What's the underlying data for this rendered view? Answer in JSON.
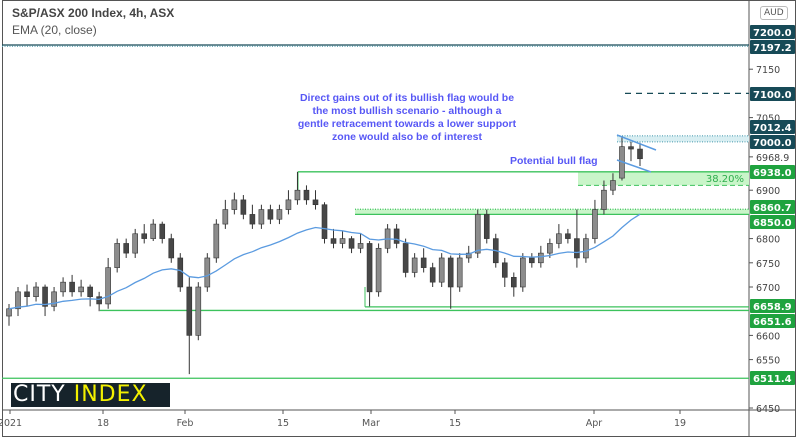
{
  "header": {
    "title": "S&P/ASX 200 Index, 4h, ASX",
    "subtitle": "EMA (20, close)",
    "currency": "AUD"
  },
  "logo": {
    "part1": "CITY",
    "part2": "INDEX"
  },
  "annotations": {
    "main": "Direct gains out of its bullish flag would be the most bullish scenario - although a gentle retracement towards a lower support zone would also be of interest",
    "flag": "Potential bull flag",
    "fib": "38.20%"
  },
  "colors": {
    "up": "#8c8c8c",
    "down": "#474747",
    "ema": "#5b9be0",
    "support": "#3cc25c",
    "zone": "#c9f5c9",
    "resistance": "#174a57",
    "label_green": "#1fa33f",
    "label_dark": "#174a57",
    "annotation": "#5757f5"
  },
  "chart_data": {
    "type": "candlestick",
    "title": "S&P/ASX 200 Index, 4h, ASX",
    "ylim": [
      6430,
      7230
    ],
    "ema_period": 20,
    "x_tick_labels": [
      "2021",
      "18",
      "Feb",
      "15",
      "Mar",
      "15",
      "Apr",
      "19"
    ],
    "y_tick_labels": [
      "7150",
      "7050",
      "6968.9",
      "6900",
      "6800",
      "6750",
      "6700",
      "6600",
      "6550",
      "6450"
    ],
    "candles": [
      [
        6640,
        6665,
        6620,
        6655
      ],
      [
        6655,
        6700,
        6640,
        6690
      ],
      [
        6690,
        6705,
        6660,
        6680
      ],
      [
        6680,
        6710,
        6670,
        6700
      ],
      [
        6700,
        6705,
        6640,
        6660
      ],
      [
        6660,
        6700,
        6650,
        6690
      ],
      [
        6690,
        6720,
        6680,
        6710
      ],
      [
        6710,
        6725,
        6680,
        6690
      ],
      [
        6690,
        6715,
        6680,
        6700
      ],
      [
        6700,
        6705,
        6660,
        6680
      ],
      [
        6680,
        6690,
        6650,
        6665
      ],
      [
        6665,
        6760,
        6655,
        6740
      ],
      [
        6740,
        6800,
        6730,
        6790
      ],
      [
        6790,
        6800,
        6760,
        6770
      ],
      [
        6770,
        6820,
        6760,
        6810
      ],
      [
        6810,
        6830,
        6790,
        6800
      ],
      [
        6800,
        6840,
        6795,
        6830
      ],
      [
        6830,
        6835,
        6790,
        6800
      ],
      [
        6800,
        6810,
        6750,
        6760
      ],
      [
        6760,
        6770,
        6690,
        6700
      ],
      [
        6700,
        6720,
        6520,
        6600
      ],
      [
        6600,
        6710,
        6590,
        6700
      ],
      [
        6700,
        6770,
        6690,
        6760
      ],
      [
        6760,
        6840,
        6750,
        6830
      ],
      [
        6830,
        6880,
        6820,
        6860
      ],
      [
        6860,
        6895,
        6850,
        6880
      ],
      [
        6880,
        6890,
        6840,
        6850
      ],
      [
        6850,
        6870,
        6820,
        6830
      ],
      [
        6830,
        6870,
        6820,
        6860
      ],
      [
        6860,
        6870,
        6830,
        6840
      ],
      [
        6840,
        6870,
        6830,
        6860
      ],
      [
        6860,
        6900,
        6850,
        6880
      ],
      [
        6880,
        6938,
        6870,
        6900
      ],
      [
        6900,
        6910,
        6870,
        6880
      ],
      [
        6880,
        6900,
        6860,
        6870
      ],
      [
        6870,
        6875,
        6790,
        6800
      ],
      [
        6800,
        6820,
        6780,
        6790
      ],
      [
        6790,
        6815,
        6780,
        6800
      ],
      [
        6800,
        6805,
        6770,
        6780
      ],
      [
        6780,
        6810,
        6770,
        6790
      ],
      [
        6790,
        6795,
        6660,
        6690
      ],
      [
        6690,
        6790,
        6680,
        6780
      ],
      [
        6780,
        6830,
        6770,
        6820
      ],
      [
        6820,
        6830,
        6780,
        6790
      ],
      [
        6790,
        6800,
        6720,
        6730
      ],
      [
        6730,
        6770,
        6720,
        6760
      ],
      [
        6760,
        6780,
        6730,
        6740
      ],
      [
        6740,
        6750,
        6700,
        6710
      ],
      [
        6710,
        6770,
        6700,
        6760
      ],
      [
        6760,
        6765,
        6655,
        6700
      ],
      [
        6700,
        6770,
        6690,
        6760
      ],
      [
        6760,
        6785,
        6750,
        6770
      ],
      [
        6770,
        6860,
        6760,
        6850
      ],
      [
        6850,
        6860,
        6790,
        6800
      ],
      [
        6800,
        6810,
        6740,
        6750
      ],
      [
        6750,
        6760,
        6700,
        6720
      ],
      [
        6720,
        6730,
        6680,
        6700
      ],
      [
        6700,
        6770,
        6690,
        6760
      ],
      [
        6760,
        6770,
        6740,
        6750
      ],
      [
        6750,
        6785,
        6740,
        6770
      ],
      [
        6770,
        6800,
        6760,
        6790
      ],
      [
        6790,
        6830,
        6780,
        6810
      ],
      [
        6810,
        6820,
        6790,
        6800
      ],
      [
        6800,
        6860,
        6740,
        6760
      ],
      [
        6760,
        6810,
        6750,
        6800
      ],
      [
        6800,
        6880,
        6790,
        6860
      ],
      [
        6860,
        6920,
        6850,
        6900
      ],
      [
        6900,
        6935,
        6890,
        6920
      ],
      [
        6925,
        7012,
        6920,
        6990
      ],
      [
        6990,
        7000,
        6960,
        6985
      ],
      [
        6985,
        6998,
        6950,
        6965
      ]
    ],
    "levels": [
      {
        "value": 7200.0,
        "label": "7200.0",
        "style": "solid",
        "kind": "resistance"
      },
      {
        "value": 7197.2,
        "label": "7197.2",
        "style": "dotted",
        "kind": "resistance"
      },
      {
        "value": 7100.0,
        "label": "7100.0",
        "style": "dashed",
        "kind": "resistance"
      },
      {
        "value": 7012.4,
        "label": "7012.4",
        "style": "zone-top",
        "kind": "resistance"
      },
      {
        "value": 7000.0,
        "label": "7000.0",
        "style": "zone-bottom",
        "kind": "resistance"
      },
      {
        "value": 6938.0,
        "label": "6938.0",
        "style": "solid",
        "kind": "support"
      },
      {
        "value": 6860.7,
        "label": "6860.7",
        "style": "dotted",
        "kind": "support"
      },
      {
        "value": 6850.0,
        "label": "6850.0",
        "style": "solid",
        "kind": "support"
      },
      {
        "value": 6658.9,
        "label": "6658.9",
        "style": "solid",
        "kind": "support"
      },
      {
        "value": 6651.6,
        "label": "6651.6",
        "style": "solid",
        "kind": "support"
      },
      {
        "value": 6511.4,
        "label": "6511.4",
        "style": "solid",
        "kind": "support"
      }
    ],
    "fib_zone": {
      "from": 6938.0,
      "to": 6910.0,
      "label": "38.20%"
    }
  }
}
